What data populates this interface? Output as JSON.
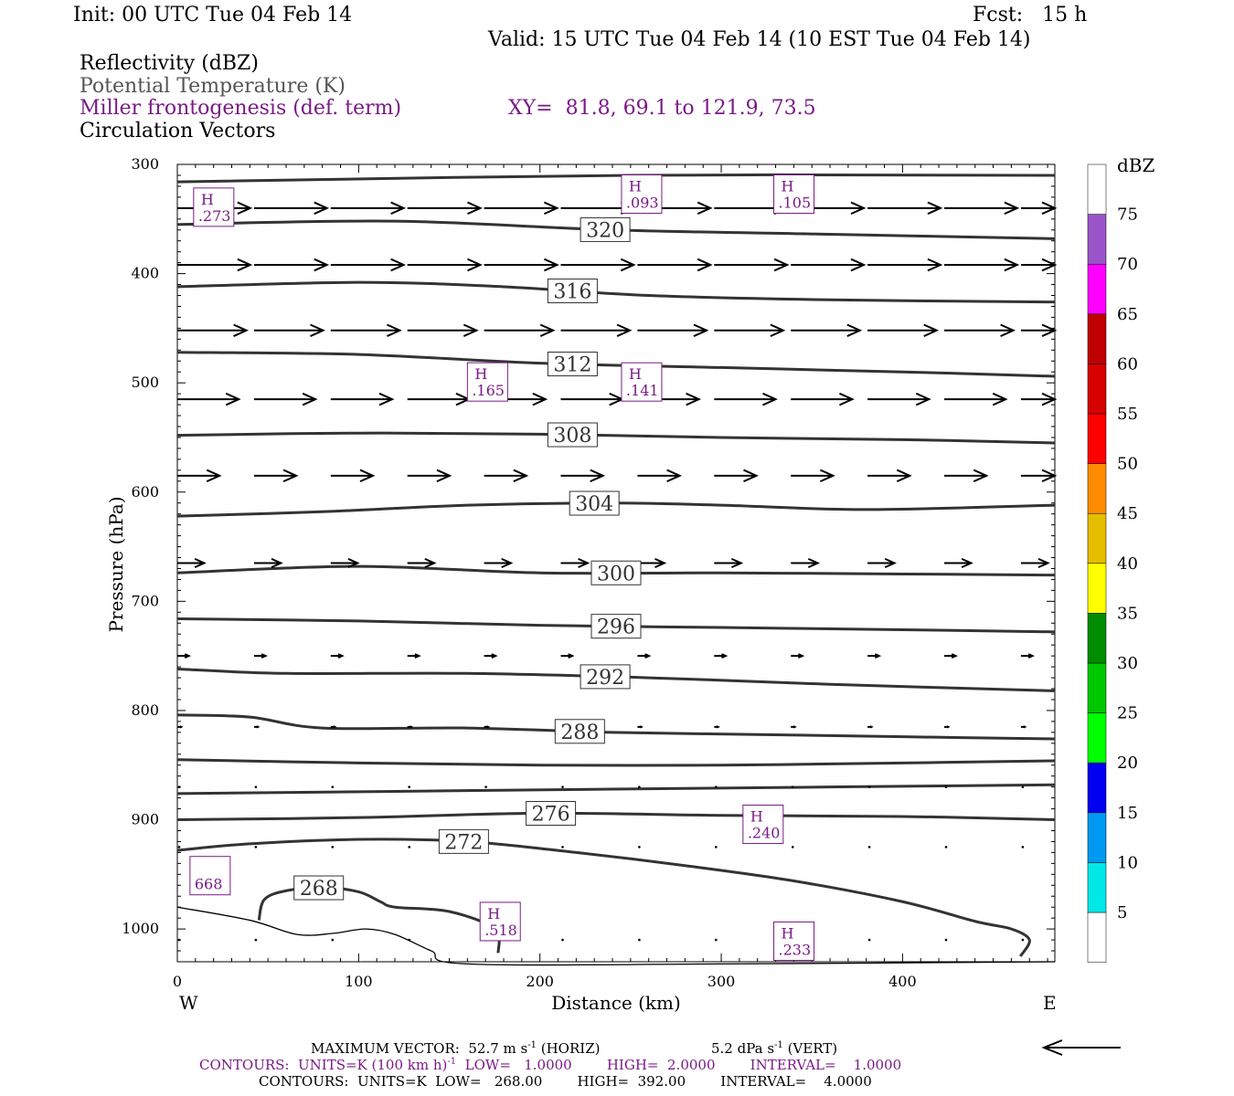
{
  "header": {
    "init": "Init: 00 UTC Tue 04 Feb 14",
    "fcst": "Fcst:   15 h",
    "valid": "Valid: 15 UTC Tue 04 Feb 14 (10 EST Tue 04 Feb 14)",
    "fields": [
      "Reflectivity (dBZ)",
      "Potential Temperature (K)",
      "Miller frontogenesis (def. term)",
      "Circulation Vectors"
    ],
    "xy": "XY=  81.8, 69.1 to 121.9, 73.5"
  },
  "colors": {
    "theta_contour": "#333333",
    "miller_label": "#7a1a86",
    "potential_temp_label": "#555555"
  },
  "chart_data": {
    "type": "line",
    "xlabel": "Distance (km)",
    "ylabel": "Pressure (hPa)",
    "xlim": [
      0,
      484
    ],
    "ylim": [
      1030,
      300
    ],
    "y_scale": "linear, inverted",
    "x_ticks": [
      "0",
      "100",
      "200",
      "300",
      "400"
    ],
    "y_ticks": [
      "300",
      "400",
      "500",
      "600",
      "700",
      "800",
      "900",
      "1000"
    ],
    "x_end_labels": {
      "left": "W",
      "right": "E"
    },
    "theta_contours": [
      {
        "label": "",
        "points": [
          [
            0,
            316
          ],
          [
            250,
            310
          ],
          [
            484,
            310
          ]
        ]
      },
      {
        "label": "320",
        "label_x": 236,
        "points": [
          [
            0,
            355
          ],
          [
            120,
            352
          ],
          [
            240,
            360
          ],
          [
            360,
            364
          ],
          [
            484,
            368
          ]
        ]
      },
      {
        "label": "316",
        "label_x": 218,
        "points": [
          [
            0,
            412
          ],
          [
            100,
            408
          ],
          [
            180,
            412
          ],
          [
            260,
            420
          ],
          [
            360,
            424
          ],
          [
            484,
            426
          ]
        ]
      },
      {
        "label": "312",
        "label_x": 218,
        "points": [
          [
            0,
            472
          ],
          [
            100,
            474
          ],
          [
            200,
            482
          ],
          [
            300,
            486
          ],
          [
            400,
            490
          ],
          [
            484,
            494
          ]
        ]
      },
      {
        "label": "308",
        "label_x": 218,
        "points": [
          [
            0,
            548
          ],
          [
            100,
            546
          ],
          [
            200,
            547
          ],
          [
            300,
            550
          ],
          [
            400,
            552
          ],
          [
            484,
            555
          ]
        ]
      },
      {
        "label": "304",
        "label_x": 230,
        "points": [
          [
            0,
            622
          ],
          [
            80,
            618
          ],
          [
            160,
            612
          ],
          [
            240,
            610
          ],
          [
            300,
            612
          ],
          [
            380,
            616
          ],
          [
            484,
            612
          ]
        ]
      },
      {
        "label": "300",
        "label_x": 242,
        "points": [
          [
            0,
            674
          ],
          [
            100,
            668
          ],
          [
            200,
            674
          ],
          [
            300,
            674
          ],
          [
            400,
            675
          ],
          [
            484,
            676
          ]
        ]
      },
      {
        "label": "296",
        "label_x": 242,
        "points": [
          [
            0,
            716
          ],
          [
            100,
            718
          ],
          [
            200,
            722
          ],
          [
            300,
            724
          ],
          [
            400,
            726
          ],
          [
            484,
            728
          ]
        ]
      },
      {
        "label": "292",
        "label_x": 236,
        "points": [
          [
            0,
            762
          ],
          [
            60,
            766
          ],
          [
            160,
            766
          ],
          [
            260,
            770
          ],
          [
            360,
            776
          ],
          [
            484,
            782
          ]
        ]
      },
      {
        "label": "288",
        "label_x": 222,
        "points": [
          [
            0,
            804
          ],
          [
            40,
            806
          ],
          [
            80,
            816
          ],
          [
            160,
            816
          ],
          [
            240,
            820
          ],
          [
            320,
            822
          ],
          [
            400,
            824
          ],
          [
            484,
            826
          ]
        ]
      },
      {
        "label": "",
        "points": [
          [
            0,
            845
          ],
          [
            100,
            848
          ],
          [
            200,
            850
          ],
          [
            300,
            850
          ],
          [
            400,
            848
          ],
          [
            484,
            846
          ]
        ]
      },
      {
        "label": "",
        "points": [
          [
            0,
            876
          ],
          [
            120,
            874
          ],
          [
            240,
            872
          ],
          [
            360,
            870
          ],
          [
            484,
            868
          ]
        ]
      },
      {
        "label": "276",
        "label_x": 206,
        "points": [
          [
            0,
            900
          ],
          [
            100,
            898
          ],
          [
            200,
            894
          ],
          [
            300,
            896
          ],
          [
            400,
            897
          ],
          [
            484,
            900
          ]
        ]
      },
      {
        "label": "272",
        "label_x": 158,
        "points": [
          [
            0,
            928
          ],
          [
            40,
            922
          ],
          [
            100,
            918
          ],
          [
            160,
            920
          ],
          [
            220,
            930
          ],
          [
            280,
            942
          ],
          [
            340,
            956
          ],
          [
            400,
            975
          ],
          [
            440,
            993
          ],
          [
            460,
            1000
          ],
          [
            470,
            1010
          ],
          [
            465,
            1025
          ]
        ]
      },
      {
        "label": "268",
        "label_x": 78,
        "points": [
          [
            45,
            992
          ],
          [
            48,
            973
          ],
          [
            60,
            965
          ],
          [
            80,
            962
          ],
          [
            100,
            966
          ],
          [
            112,
            975
          ],
          [
            120,
            980
          ],
          [
            150,
            984
          ],
          [
            175,
            1000
          ],
          [
            177,
            1022
          ]
        ]
      }
    ],
    "terrain": {
      "label": "",
      "points": [
        [
          0,
          980
        ],
        [
          40,
          992
        ],
        [
          66,
          1005
        ],
        [
          86,
          1004
        ],
        [
          104,
          1000
        ],
        [
          120,
          1005
        ],
        [
          140,
          1020
        ],
        [
          160,
          1032
        ],
        [
          300,
          1032
        ],
        [
          484,
          1030
        ]
      ]
    },
    "miller_maxima": [
      {
        "letter": "H",
        "value": ".273",
        "x": 10,
        "p": 340
      },
      {
        "letter": "H",
        "value": ".093",
        "x": 246,
        "p": 328
      },
      {
        "letter": "H",
        "value": ".105",
        "x": 330,
        "p": 328
      },
      {
        "letter": "H",
        "value": ".165",
        "x": 161,
        "p": 500
      },
      {
        "letter": "H",
        "value": ".141",
        "x": 246,
        "p": 500
      },
      {
        "letter": "H",
        "value": ".240",
        "x": 313,
        "p": 905
      },
      {
        "letter": "",
        "value": "668",
        "x": 8,
        "p": 952
      },
      {
        "letter": "H",
        "value": ".518",
        "x": 168,
        "p": 994
      },
      {
        "letter": "H",
        "value": ".233",
        "x": 330,
        "p": 1012
      }
    ],
    "vector_rows": [
      {
        "p": 340,
        "u": 38,
        "w": 0
      },
      {
        "p": 392,
        "u": 38,
        "w": 0
      },
      {
        "p": 452,
        "u": 36,
        "w": 0
      },
      {
        "p": 515,
        "u": 32,
        "w": 0
      },
      {
        "p": 585,
        "u": 22,
        "w": 0
      },
      {
        "p": 665,
        "u": 14,
        "w": 0
      },
      {
        "p": 750,
        "u": 6,
        "w": 0
      },
      {
        "p": 815,
        "u": 2,
        "w": 0
      },
      {
        "p": 870,
        "u": 0.5,
        "w": 0
      },
      {
        "p": 925,
        "u": 0.3,
        "w": 0
      },
      {
        "p": 1010,
        "u": 0.2,
        "w": 0
      }
    ],
    "colorbar": {
      "title": "dBZ",
      "levels": [
        "5",
        "10",
        "15",
        "20",
        "25",
        "30",
        "35",
        "40",
        "45",
        "50",
        "55",
        "60",
        "65",
        "70",
        "75"
      ],
      "colors": [
        "#ffffff",
        "#00e8e8",
        "#0099f2",
        "#0000f0",
        "#00ff00",
        "#00c800",
        "#008c00",
        "#ffff00",
        "#e6be00",
        "#ff8c00",
        "#ff0000",
        "#d60000",
        "#c00000",
        "#ff00ff",
        "#9955c9",
        "#ffffff"
      ]
    }
  },
  "footer": {
    "max_vector": "MAXIMUM VECTOR:  52.7 m s",
    "max_vector_sup": "-1",
    "horiz": " (HORIZ)",
    "vert": "5.2 dPa s",
    "vert_sup": "-1",
    "vert_tail": " (VERT)",
    "contours1_a": "CONTOURS:  UNITS=K (100 km h)",
    "contours1_sup": "-1",
    "contours1_b": "  LOW=   1.0000        HIGH=  2.0000        INTERVAL=    1.0000",
    "contours2": "CONTOURS:  UNITS=K  LOW=   268.00        HIGH=  392.00        INTERVAL=    4.0000"
  }
}
